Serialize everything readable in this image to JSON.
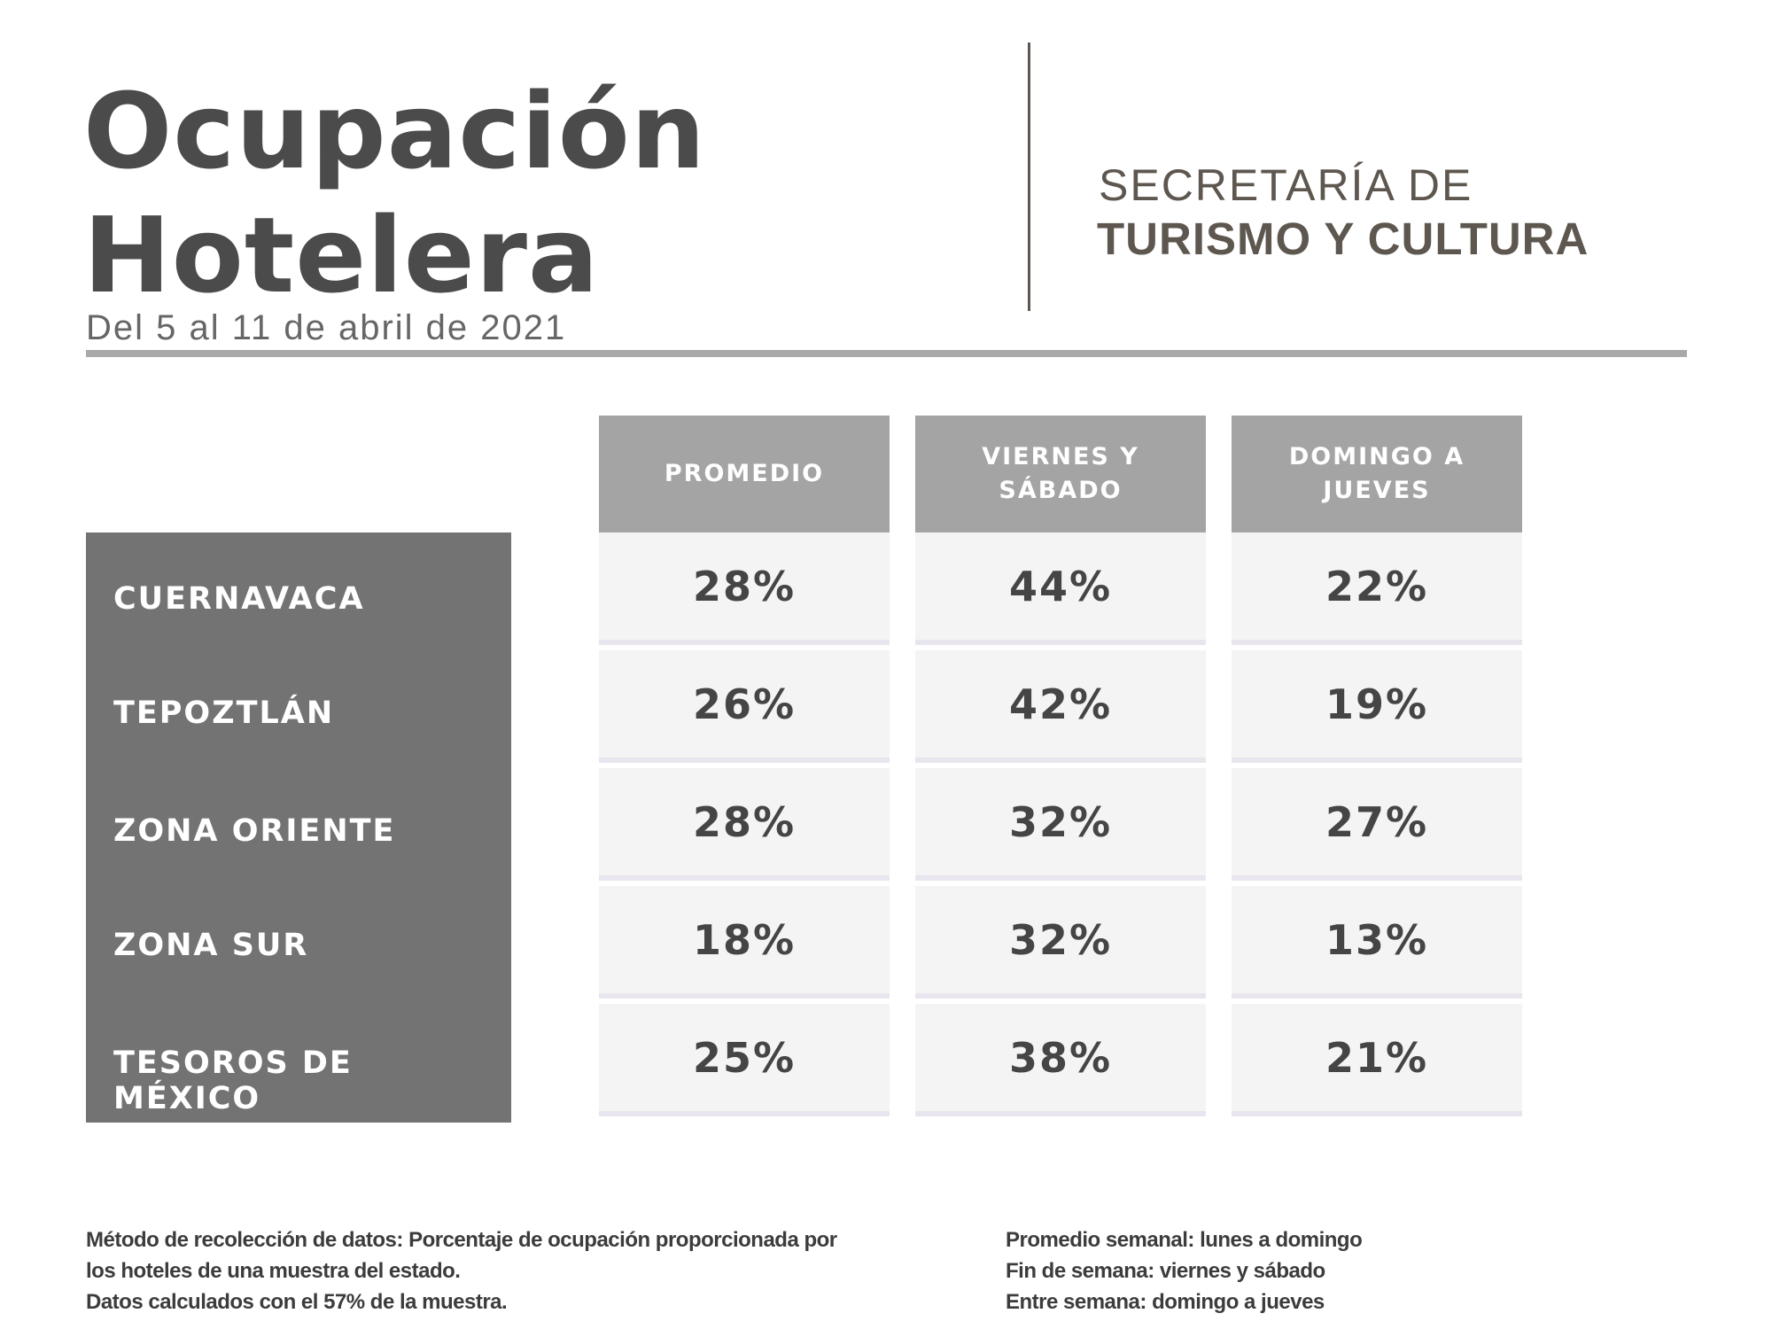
{
  "header": {
    "title_line1": "Ocupación",
    "title_line2": "Hotelera",
    "subtitle": "Del 5 al 11 de abril de 2021",
    "logo_line1": "SECRETARÍA  DE",
    "logo_line2": "TURISMO Y CULTURA"
  },
  "table": {
    "columns": [
      "PROMEDIO",
      "VIERNES Y SÁBADO",
      "DOMINGO A JUEVES"
    ],
    "rows": [
      {
        "label": "CUERNAVACA",
        "values": [
          "28%",
          "44%",
          "22%"
        ]
      },
      {
        "label": "TEPOZTLÁN",
        "values": [
          "26%",
          "42%",
          "19%"
        ]
      },
      {
        "label": "ZONA ORIENTE",
        "values": [
          "28%",
          "32%",
          "27%"
        ]
      },
      {
        "label": "ZONA SUR",
        "values": [
          "18%",
          "32%",
          "13%"
        ]
      },
      {
        "label": "TESOROS DE MÉXICO",
        "values": [
          "25%",
          "38%",
          "21%"
        ]
      }
    ]
  },
  "footer": {
    "left": [
      "Método de recolección de datos: Porcentaje de ocupación proporcionada por",
      "los hoteles de una muestra del estado.",
      "Datos calculados con el 57% de la muestra."
    ],
    "right": [
      "Promedio semanal: lunes a domingo",
      "Fin de semana: viernes y sábado",
      "Entre semana: domingo a jueves"
    ]
  },
  "colors": {
    "header_cell": "#a4a4a4",
    "label_block": "#737373",
    "value_cell": "#f4f4f4",
    "logo": "#5e574f"
  }
}
